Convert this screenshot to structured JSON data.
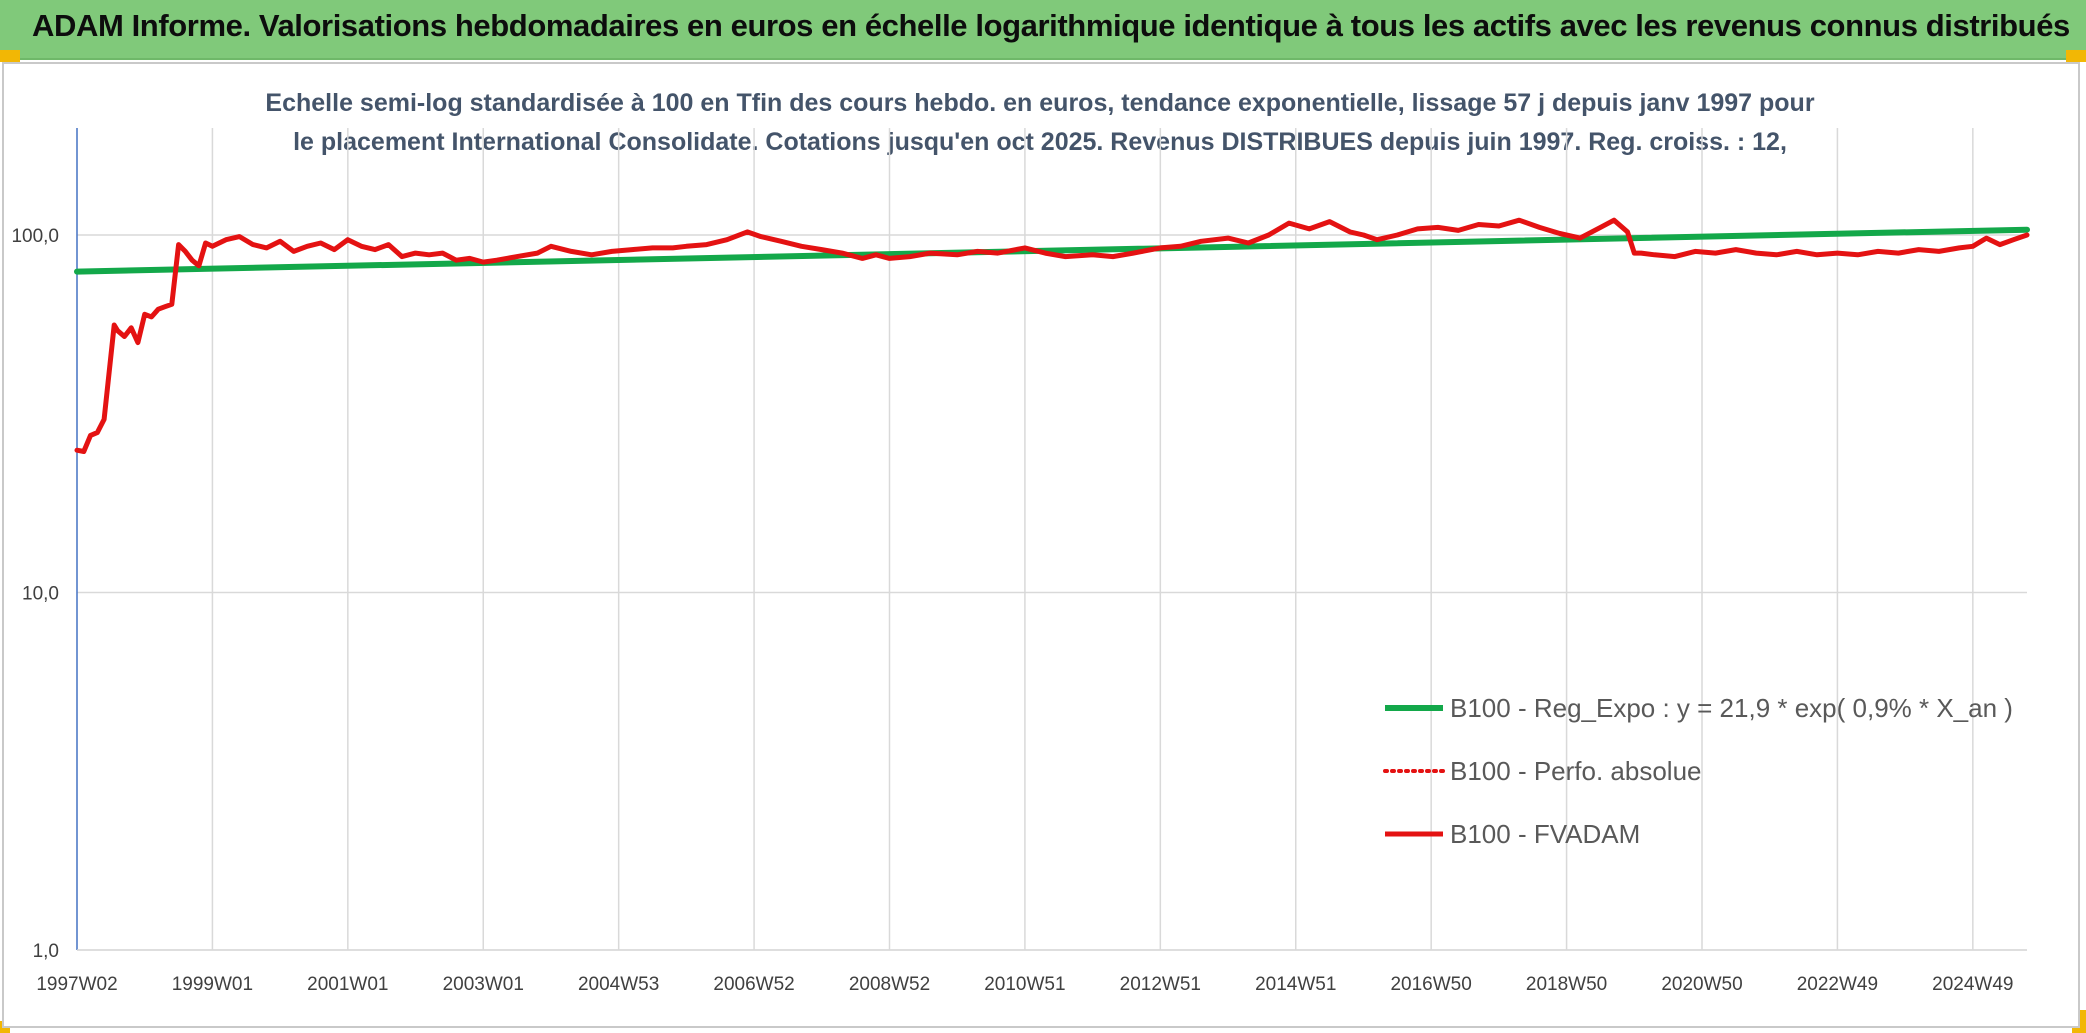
{
  "header": {
    "title": "ADAM Informe. Valorisations hebdomadaires en euros en échelle logarithmique identique à tous les actifs avec les revenus connus distribués"
  },
  "colors": {
    "header_bg": "#80c97a",
    "accent_corner": "#f2b705",
    "trend_line": "#13a84a",
    "fvadam_line": "#e41212",
    "perf_line": "#e41212",
    "grid": "#d9d9d9",
    "axis": "#4472c4"
  },
  "chart_data": {
    "type": "line",
    "title": "Echelle semi-log standardisée à 100 en Tfin des cours hebdo. en euros, tendance exponentielle, lissage 57 j depuis janv 1997 pour le placement International Consolidate. Cotations jusqu'en oct 2025. Revenus DISTRIBUES depuis juin 1997. Reg. croiss. : 12,",
    "xlabel": "",
    "ylabel": "",
    "yscale": "log",
    "ylim": [
      1,
      200
    ],
    "xlim": [
      1997.0,
      2025.8
    ],
    "y_ticks": [
      {
        "value": 1,
        "label": "1,0"
      },
      {
        "value": 10,
        "label": "10,0"
      },
      {
        "value": 100,
        "label": "100,0"
      }
    ],
    "x_ticks": [
      {
        "value": 1997.0,
        "label": "1997W02"
      },
      {
        "value": 1999.0,
        "label": "1999W01"
      },
      {
        "value": 2001.0,
        "label": "2001W01"
      },
      {
        "value": 2003.0,
        "label": "2003W01"
      },
      {
        "value": 2005.0,
        "label": "2004W53"
      },
      {
        "value": 2007.0,
        "label": "2006W52"
      },
      {
        "value": 2009.0,
        "label": "2008W52"
      },
      {
        "value": 2011.0,
        "label": "2010W51"
      },
      {
        "value": 2013.0,
        "label": "2012W51"
      },
      {
        "value": 2015.0,
        "label": "2014W51"
      },
      {
        "value": 2017.0,
        "label": "2016W50"
      },
      {
        "value": 2019.0,
        "label": "2018W50"
      },
      {
        "value": 2021.0,
        "label": "2020W50"
      },
      {
        "value": 2023.0,
        "label": "2022W49"
      },
      {
        "value": 2025.0,
        "label": "2024W49"
      }
    ],
    "legend_position": "bottom-right",
    "series": [
      {
        "name": "B100 - Reg_Expo : y = 21,9 * exp( 0,9% *  X_an )",
        "style": "solid-thick",
        "x": [
          1997.0,
          2025.8
        ],
        "values": [
          79,
          103.5
        ]
      },
      {
        "name": "B100 - Perfo. absolue",
        "style": "dotted",
        "x": [],
        "values": []
      },
      {
        "name": "B100 - FVADAM",
        "style": "solid",
        "x": [
          1997.0,
          1997.1,
          1997.2,
          1997.3,
          1997.4,
          1997.55,
          1997.6,
          1997.7,
          1997.8,
          1997.9,
          1998.0,
          1998.1,
          1998.2,
          1998.3,
          1998.4,
          1998.5,
          1998.6,
          1998.7,
          1998.8,
          1998.9,
          1999.0,
          1999.2,
          1999.4,
          1999.6,
          1999.8,
          2000.0,
          2000.2,
          2000.4,
          2000.6,
          2000.8,
          2001.0,
          2001.2,
          2001.4,
          2001.6,
          2001.8,
          2002.0,
          2002.2,
          2002.4,
          2002.6,
          2002.8,
          2003.0,
          2003.2,
          2003.5,
          2003.8,
          2004.0,
          2004.3,
          2004.6,
          2004.9,
          2005.2,
          2005.5,
          2005.8,
          2006.0,
          2006.3,
          2006.6,
          2006.9,
          2007.1,
          2007.4,
          2007.7,
          2008.0,
          2008.3,
          2008.6,
          2008.8,
          2009.0,
          2009.3,
          2009.6,
          2010.0,
          2010.3,
          2010.6,
          2011.0,
          2011.3,
          2011.6,
          2012.0,
          2012.3,
          2012.6,
          2013.0,
          2013.3,
          2013.6,
          2014.0,
          2014.3,
          2014.6,
          2014.9,
          2015.2,
          2015.5,
          2015.8,
          2016.0,
          2016.2,
          2016.5,
          2016.8,
          2017.1,
          2017.4,
          2017.7,
          2018.0,
          2018.3,
          2018.6,
          2018.9,
          2019.2,
          2019.5,
          2019.7,
          2019.9,
          2020.0,
          2020.1,
          2020.3,
          2020.6,
          2020.9,
          2021.2,
          2021.5,
          2021.8,
          2022.1,
          2022.4,
          2022.7,
          2023.0,
          2023.3,
          2023.6,
          2023.9,
          2024.2,
          2024.5,
          2024.8,
          2025.0,
          2025.2,
          2025.4,
          2025.6,
          2025.8
        ],
        "values": [
          25,
          24.8,
          27.5,
          28,
          30.5,
          56,
          54,
          52,
          55,
          50,
          60,
          59,
          62,
          63,
          64,
          94,
          90,
          85,
          82,
          95,
          93,
          97,
          99,
          94,
          92,
          96,
          90,
          93,
          95,
          91,
          97,
          93,
          91,
          94,
          87,
          89,
          88,
          89,
          85,
          86,
          84,
          85,
          87,
          89,
          93,
          90,
          88,
          90,
          91,
          92,
          92,
          93,
          94,
          97,
          102,
          99,
          96,
          93,
          91,
          89,
          86,
          88,
          86,
          87,
          89,
          88,
          90,
          89,
          92,
          89,
          87,
          88,
          87,
          89,
          92,
          93,
          96,
          98,
          95,
          100,
          108,
          104,
          109,
          102,
          100,
          97,
          100,
          104,
          105,
          103,
          107,
          106,
          110,
          105,
          101,
          98,
          105,
          110,
          102,
          89,
          89,
          88,
          87,
          90,
          89,
          91,
          89,
          88,
          90,
          88,
          89,
          88,
          90,
          89,
          91,
          90,
          92,
          93,
          98,
          94,
          97,
          100
        ]
      }
    ]
  }
}
